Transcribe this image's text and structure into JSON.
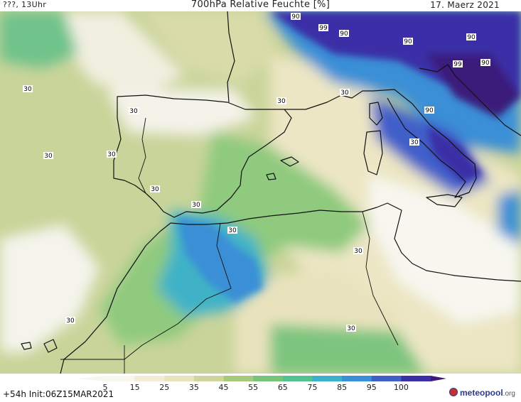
{
  "header": {
    "left": "???, 13Uhr",
    "title": "700hPa Relative Feuchte [%]",
    "right": "17. Maerz 2021"
  },
  "colorbar": {
    "labels": [
      "5",
      "15",
      "25",
      "35",
      "45",
      "55",
      "65",
      "75",
      "85",
      "95",
      "100"
    ],
    "colors": [
      "#f7f7f0",
      "#f2ecd6",
      "#e9e3bd",
      "#cfd59d",
      "#a8c97c",
      "#78c57a",
      "#52c38e",
      "#3ab0c9",
      "#3b8fd6",
      "#3f5fc9",
      "#3a2fa6",
      "#3a1a7a"
    ]
  },
  "contour_labels": [
    "90",
    "99",
    "90",
    "90",
    "90",
    "99",
    "90",
    "90",
    "30",
    "30",
    "30",
    "30",
    "30",
    "30",
    "30",
    "30",
    "30",
    "30",
    "30",
    "30",
    "30"
  ],
  "footer": {
    "run": "+54h Init:06Z15MAR2021",
    "logo_name": "meteopool",
    "logo_suffix": ".org"
  },
  "colors": {
    "land_line": "#111111",
    "background": "#ffffff"
  }
}
